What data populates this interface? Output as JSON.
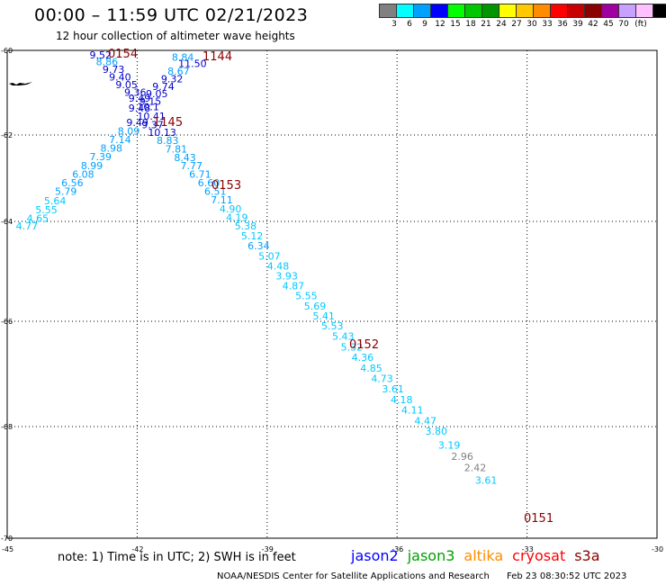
{
  "header": {
    "title": "00:00 – 11:59 UTC 02/21/2023",
    "subtitle": "12 hour collection of altimeter wave heights"
  },
  "legend": {
    "unit": "(ft)",
    "items": [
      {
        "label": "3",
        "color": "#808080"
      },
      {
        "label": "6",
        "color": "#00ffff"
      },
      {
        "label": "9",
        "color": "#00a0ff"
      },
      {
        "label": "12",
        "color": "#0000ff"
      },
      {
        "label": "15",
        "color": "#00ff00"
      },
      {
        "label": "18",
        "color": "#00c800"
      },
      {
        "label": "21",
        "color": "#009600"
      },
      {
        "label": "24",
        "color": "#ffff00"
      },
      {
        "label": "27",
        "color": "#ffc800"
      },
      {
        "label": "30",
        "color": "#ff8c00"
      },
      {
        "label": "33",
        "color": "#ff0000"
      },
      {
        "label": "36",
        "color": "#c80000"
      },
      {
        "label": "39",
        "color": "#8b0000"
      },
      {
        "label": "42",
        "color": "#a000a0"
      },
      {
        "label": "45",
        "color": "#c8a0ff"
      },
      {
        "label": "70",
        "color": "#ffc0ff"
      },
      {
        "label": "",
        "color": "#000000"
      }
    ]
  },
  "axes": {
    "lat_labels": [
      "-60",
      "-62",
      "-64",
      "-66",
      "-68",
      "-70"
    ],
    "lon_labels": [
      "-45",
      "-42",
      "-39",
      "-36",
      "-33",
      "-30"
    ]
  },
  "time_labels": [
    {
      "text": "0154"
    },
    {
      "text": "1144"
    },
    {
      "text": "1145"
    },
    {
      "text": "0153"
    },
    {
      "text": "0152"
    },
    {
      "text": "0151"
    }
  ],
  "wave_points": [
    {
      "v": "9.52",
      "c": "#0000cc",
      "lon": -43.1,
      "lat": -60.0
    },
    {
      "v": "8.86",
      "c": "#00a0ff",
      "lon": -42.95,
      "lat": -60.16
    },
    {
      "v": "9.73",
      "c": "#0000cc",
      "lon": -42.8,
      "lat": -60.34
    },
    {
      "v": "9.40",
      "c": "#0000cc",
      "lon": -42.65,
      "lat": -60.52
    },
    {
      "v": "9.05",
      "c": "#0000cc",
      "lon": -42.5,
      "lat": -60.7
    },
    {
      "v": "9.36",
      "c": "#0000cc",
      "lon": -42.3,
      "lat": -60.88
    },
    {
      "v": "9.49",
      "c": "#0000cc",
      "lon": -42.2,
      "lat": -61.02
    },
    {
      "v": "9.48",
      "c": "#0000cc",
      "lon": -42.2,
      "lat": -61.25
    },
    {
      "v": "9.49",
      "c": "#0000cc",
      "lon": -42.25,
      "lat": -61.6
    },
    {
      "v": "8.09",
      "c": "#00a0ff",
      "lon": -42.45,
      "lat": -61.8
    },
    {
      "v": "7.14",
      "c": "#00a0ff",
      "lon": -42.65,
      "lat": -62.0
    },
    {
      "v": "8.98",
      "c": "#00a0ff",
      "lon": -42.85,
      "lat": -62.2
    },
    {
      "v": "7.39",
      "c": "#00a0ff",
      "lon": -43.1,
      "lat": -62.4
    },
    {
      "v": "8.99",
      "c": "#00a0ff",
      "lon": -43.3,
      "lat": -62.6
    },
    {
      "v": "6.08",
      "c": "#00a0ff",
      "lon": -43.5,
      "lat": -62.8
    },
    {
      "v": "6.56",
      "c": "#00a0ff",
      "lon": -43.75,
      "lat": -63.0
    },
    {
      "v": "5.79",
      "c": "#00a0ff",
      "lon": -43.9,
      "lat": -63.2
    },
    {
      "v": "5.64",
      "c": "#00c8ff",
      "lon": -44.15,
      "lat": -63.42
    },
    {
      "v": "5.55",
      "c": "#00c8ff",
      "lon": -44.35,
      "lat": -63.63
    },
    {
      "v": "4.65",
      "c": "#00c8ff",
      "lon": -44.55,
      "lat": -63.82
    },
    {
      "v": "4.77",
      "c": "#00c8ff",
      "lon": -44.8,
      "lat": -64.0
    },
    {
      "v": "8.84",
      "c": "#00a0ff",
      "lon": -41.2,
      "lat": -60.05
    },
    {
      "v": "11.50",
      "c": "#0000cc",
      "lon": -41.05,
      "lat": -60.2
    },
    {
      "v": "8.67",
      "c": "#00a0ff",
      "lon": -41.3,
      "lat": -60.38
    },
    {
      "v": "9.32",
      "c": "#0000cc",
      "lon": -41.45,
      "lat": -60.56
    },
    {
      "v": "9.74",
      "c": "#0000cc",
      "lon": -41.65,
      "lat": -60.74
    },
    {
      "v": "9.05",
      "c": "#0000cc",
      "lon": -41.8,
      "lat": -60.92
    },
    {
      "v": "9.15",
      "c": "#0000cc",
      "lon": -41.95,
      "lat": -61.1
    },
    {
      "v": "10.1",
      "c": "#0000cc",
      "lon": -42.0,
      "lat": -61.22
    },
    {
      "v": "10.41",
      "c": "#0000cc",
      "lon": -42.0,
      "lat": -61.45
    },
    {
      "v": "9.37",
      "c": "#0000cc",
      "lon": -41.9,
      "lat": -61.65
    },
    {
      "v": "10.13",
      "c": "#0000cc",
      "lon": -41.75,
      "lat": -61.83
    },
    {
      "v": "8.83",
      "c": "#00a0ff",
      "lon": -41.55,
      "lat": -62.02
    },
    {
      "v": "7.81",
      "c": "#00a0ff",
      "lon": -41.35,
      "lat": -62.22
    },
    {
      "v": "8.43",
      "c": "#00a0ff",
      "lon": -41.15,
      "lat": -62.42
    },
    {
      "v": "7.77",
      "c": "#00a0ff",
      "lon": -41.0,
      "lat": -62.6
    },
    {
      "v": "6.71",
      "c": "#00a0ff",
      "lon": -40.8,
      "lat": -62.8
    },
    {
      "v": "6.60",
      "c": "#00a0ff",
      "lon": -40.6,
      "lat": -63.0
    },
    {
      "v": "6.51",
      "c": "#00a0ff",
      "lon": -40.45,
      "lat": -63.2
    },
    {
      "v": "7.11",
      "c": "#00a0ff",
      "lon": -40.3,
      "lat": -63.4
    },
    {
      "v": "4.90",
      "c": "#00c8ff",
      "lon": -40.1,
      "lat": -63.6
    },
    {
      "v": "4.19",
      "c": "#00c8ff",
      "lon": -39.95,
      "lat": -63.8
    },
    {
      "v": "5.38",
      "c": "#00c8ff",
      "lon": -39.75,
      "lat": -64.0
    },
    {
      "v": "5.12",
      "c": "#00c8ff",
      "lon": -39.6,
      "lat": -64.2
    },
    {
      "v": "6.34",
      "c": "#00a0ff",
      "lon": -39.45,
      "lat": -64.4
    },
    {
      "v": "5.07",
      "c": "#00c8ff",
      "lon": -39.2,
      "lat": -64.6
    },
    {
      "v": "4.48",
      "c": "#00c8ff",
      "lon": -39.0,
      "lat": -64.8
    },
    {
      "v": "3.93",
      "c": "#00c8ff",
      "lon": -38.8,
      "lat": -65.0
    },
    {
      "v": "4.87",
      "c": "#00c8ff",
      "lon": -38.65,
      "lat": -65.2
    },
    {
      "v": "5.55",
      "c": "#00c8ff",
      "lon": -38.35,
      "lat": -65.4
    },
    {
      "v": "5.69",
      "c": "#00c8ff",
      "lon": -38.15,
      "lat": -65.6
    },
    {
      "v": "5.41",
      "c": "#00c8ff",
      "lon": -37.95,
      "lat": -65.8
    },
    {
      "v": "5.53",
      "c": "#00c8ff",
      "lon": -37.75,
      "lat": -66.0
    },
    {
      "v": "5.43",
      "c": "#00c8ff",
      "lon": -37.5,
      "lat": -66.2
    },
    {
      "v": "5.32",
      "c": "#00c8ff",
      "lon": -37.3,
      "lat": -66.4
    },
    {
      "v": "4.36",
      "c": "#00c8ff",
      "lon": -37.05,
      "lat": -66.6
    },
    {
      "v": "4.85",
      "c": "#00c8ff",
      "lon": -36.85,
      "lat": -66.8
    },
    {
      "v": "4.73",
      "c": "#00c8ff",
      "lon": -36.6,
      "lat": -67.0
    },
    {
      "v": "3.61",
      "c": "#00c8ff",
      "lon": -36.35,
      "lat": -67.2
    },
    {
      "v": "4.18",
      "c": "#00c8ff",
      "lon": -36.15,
      "lat": -67.4
    },
    {
      "v": "4.11",
      "c": "#00c8ff",
      "lon": -35.9,
      "lat": -67.6
    },
    {
      "v": "4.47",
      "c": "#00c8ff",
      "lon": -35.6,
      "lat": -67.8
    },
    {
      "v": "3.80",
      "c": "#00c8ff",
      "lon": -35.35,
      "lat": -68.0
    },
    {
      "v": "3.19",
      "c": "#00c8ff",
      "lon": -35.05,
      "lat": -68.25
    },
    {
      "v": "2.96",
      "c": "#808080",
      "lon": -34.75,
      "lat": -68.45
    },
    {
      "v": "2.42",
      "c": "#808080",
      "lon": -34.45,
      "lat": -68.65
    },
    {
      "v": "3.61",
      "c": "#00c8ff",
      "lon": -34.2,
      "lat": -68.88
    }
  ],
  "footer": {
    "note": "note:  1) Time is in UTC;  2) SWH is in feet",
    "satellites": [
      {
        "name": "jason2",
        "color": "#0000ff"
      },
      {
        "name": "jason3",
        "color": "#00a000"
      },
      {
        "name": "altika",
        "color": "#ff8c00"
      },
      {
        "name": "cryosat",
        "color": "#ff0000"
      },
      {
        "name": "s3a",
        "color": "#8b0000"
      }
    ],
    "credit": "NOAA/NESDIS Center for Satellite Applications and Research",
    "generated": "Feb 23 08:30:52 UTC 2023"
  }
}
